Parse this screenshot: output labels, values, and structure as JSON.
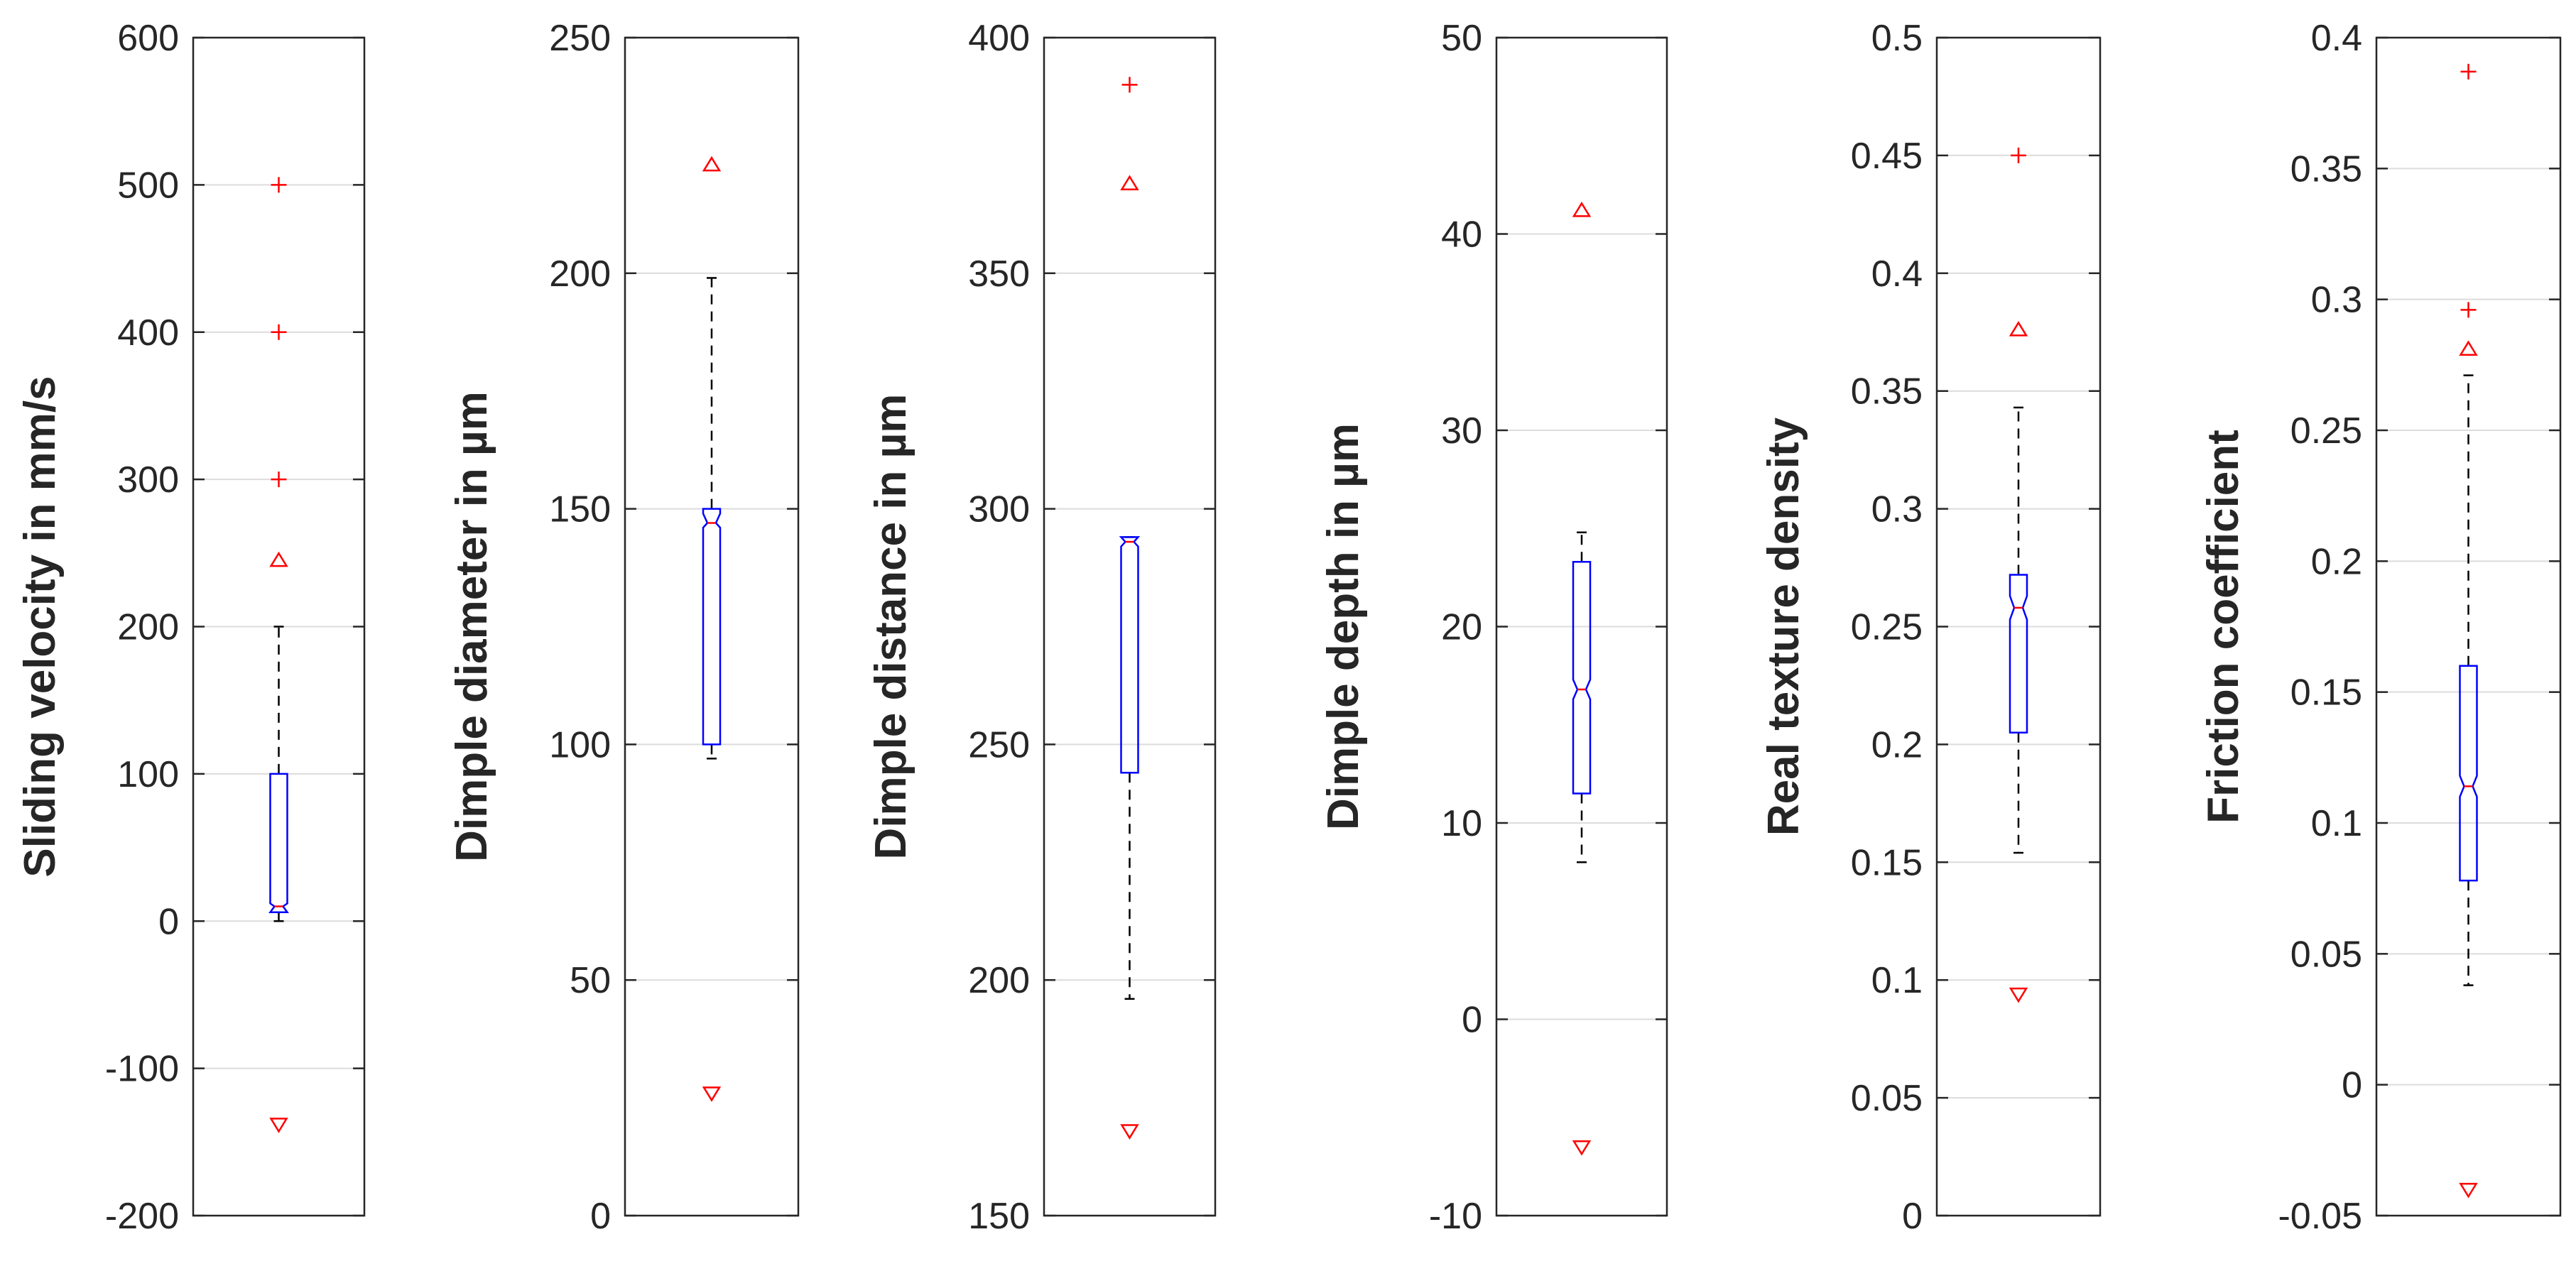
{
  "chart_data": [
    {
      "type": "box",
      "ylabel": "Sliding velocity in mm/s",
      "ylim": [
        -200,
        600
      ],
      "yticks": [
        -200,
        -100,
        0,
        100,
        200,
        300,
        400,
        500,
        600
      ],
      "tick_labels": [
        "-200",
        "-100",
        "0",
        "100",
        "200",
        "300",
        "400",
        "500",
        "600"
      ],
      "box": {
        "q1": 6,
        "median": 10,
        "q3": 100,
        "whisker_low": 0,
        "whisker_high": 200,
        "notch_low": 6,
        "notch_high": 12
      },
      "outliers": [
        300,
        400,
        500
      ],
      "max_marker": 245,
      "min_marker": -138
    },
    {
      "type": "box",
      "ylabel": "Dimple diameter in µm",
      "ylim": [
        0,
        250
      ],
      "yticks": [
        0,
        50,
        100,
        150,
        200,
        250
      ],
      "tick_labels": [
        "0",
        "50",
        "100",
        "150",
        "200",
        "250"
      ],
      "box": {
        "q1": 100,
        "median": 147,
        "q3": 150,
        "whisker_low": 97,
        "whisker_high": 199,
        "notch_low": 146,
        "notch_high": 149
      },
      "outliers": [],
      "max_marker": 223,
      "min_marker": 26
    },
    {
      "type": "box",
      "ylabel": "Dimple distance in µm",
      "ylim": [
        150,
        400
      ],
      "yticks": [
        150,
        200,
        250,
        300,
        350,
        400
      ],
      "tick_labels": [
        "150",
        "200",
        "250",
        "300",
        "350",
        "400"
      ],
      "box": {
        "q1": 244,
        "median": 293,
        "q3": 294,
        "whisker_low": 196,
        "whisker_high": 294,
        "notch_low": 292,
        "notch_high": 294
      },
      "outliers": [
        390
      ],
      "max_marker": 369,
      "min_marker": 168
    },
    {
      "type": "box",
      "ylabel": "Dimple depth in µm",
      "ylim": [
        -10,
        50
      ],
      "yticks": [
        -10,
        0,
        10,
        20,
        30,
        40,
        50
      ],
      "tick_labels": [
        "-10",
        "0",
        "10",
        "20",
        "30",
        "40",
        "50"
      ],
      "box": {
        "q1": 11.5,
        "median": 16.8,
        "q3": 23.3,
        "whisker_low": 8,
        "whisker_high": 24.8,
        "notch_low": 16.3,
        "notch_high": 17.3
      },
      "outliers": [],
      "max_marker": 41.2,
      "min_marker": -6.5
    },
    {
      "type": "box",
      "ylabel": "Real texture density",
      "ylim": [
        0,
        0.5
      ],
      "yticks": [
        0,
        0.05,
        0.1,
        0.15,
        0.2,
        0.25,
        0.3,
        0.35,
        0.4,
        0.45,
        0.5
      ],
      "tick_labels": [
        "0",
        "0.05",
        "0.1",
        "0.15",
        "0.2",
        "0.25",
        "0.3",
        "0.35",
        "0.4",
        "0.45",
        "0.5"
      ],
      "box": {
        "q1": 0.205,
        "median": 0.258,
        "q3": 0.272,
        "whisker_low": 0.154,
        "whisker_high": 0.343,
        "notch_low": 0.253,
        "notch_high": 0.263
      },
      "outliers": [
        0.45
      ],
      "max_marker": 0.376,
      "min_marker": 0.094
    },
    {
      "type": "box",
      "ylabel": "Friction coefficient",
      "ylim": [
        -0.05,
        0.4
      ],
      "yticks": [
        -0.05,
        0,
        0.05,
        0.1,
        0.15,
        0.2,
        0.25,
        0.3,
        0.35,
        0.4
      ],
      "tick_labels": [
        "-0.05",
        "0",
        "0.05",
        "0.1",
        "0.15",
        "0.2",
        "0.25",
        "0.3",
        "0.35",
        "0.4"
      ],
      "box": {
        "q1": 0.078,
        "median": 0.114,
        "q3": 0.16,
        "whisker_low": 0.038,
        "whisker_high": 0.271,
        "notch_low": 0.11,
        "notch_high": 0.118
      },
      "outliers": [
        0.296,
        0.387
      ],
      "max_marker": 0.281,
      "min_marker": -0.04
    }
  ]
}
